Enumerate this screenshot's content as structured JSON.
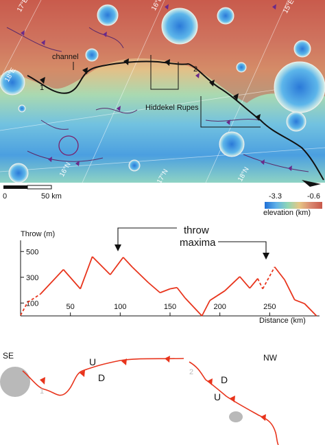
{
  "map": {
    "lon_labels": [
      "17°E",
      "16°E",
      "15°E",
      "18°E"
    ],
    "lat_labels": [
      "16°N",
      "17°N",
      "18°N"
    ],
    "segment_labels": [
      "1",
      "2"
    ],
    "callout_channel": "channel",
    "callout_rupes": "Hiddekel Rupes",
    "scale_start": "0",
    "scale_end": "50 km",
    "legend_min": "-3.3",
    "legend_max": "-0.6",
    "legend_title": "elevation (km)",
    "colors": {
      "ramp": [
        "#1f6fd6",
        "#5fb1e8",
        "#8fd6b5",
        "#e6c785",
        "#d98870",
        "#c8584a"
      ],
      "fault": "#111111",
      "thrust_teeth": "#6a2a8a",
      "rupes_teeth": "#111111"
    }
  },
  "profile": {
    "ylabel": "Throw (m)",
    "xlabel": "Distance (km)",
    "annotation_line1": "throw",
    "annotation_line2": "maxima",
    "chart_data": {
      "type": "line",
      "xlabel": "Distance (km)",
      "ylabel": "Throw (m)",
      "xlim": [
        0,
        300
      ],
      "ylim": [
        0,
        560
      ],
      "x_ticks": [
        50,
        100,
        150,
        200,
        250
      ],
      "y_ticks": [
        100,
        300,
        500
      ],
      "series": [
        {
          "x": [
            0,
            7,
            20,
            43,
            60,
            72,
            90,
            103,
            112,
            128,
            140,
            150,
            157,
            165,
            182,
            190,
            197,
            205,
            220,
            230,
            238,
            243,
            255,
            265,
            275,
            285,
            297
          ],
          "y": [
            5,
            105,
            170,
            360,
            210,
            460,
            320,
            455,
            380,
            260,
            180,
            210,
            220,
            140,
            0,
            120,
            155,
            195,
            305,
            215,
            290,
            210,
            380,
            280,
            125,
            95,
            0
          ],
          "dashed_ranges": [
            [
              0,
              20
            ],
            [
              238,
              255
            ]
          ],
          "color": "#e8341c"
        }
      ]
    }
  },
  "trace": {
    "label_se": "SE",
    "label_nw": "NW",
    "label_u1": "U",
    "label_d1": "D",
    "label_d2": "D",
    "label_u2": "U",
    "seg1": "1",
    "seg2": "2",
    "color": "#e8341c"
  }
}
